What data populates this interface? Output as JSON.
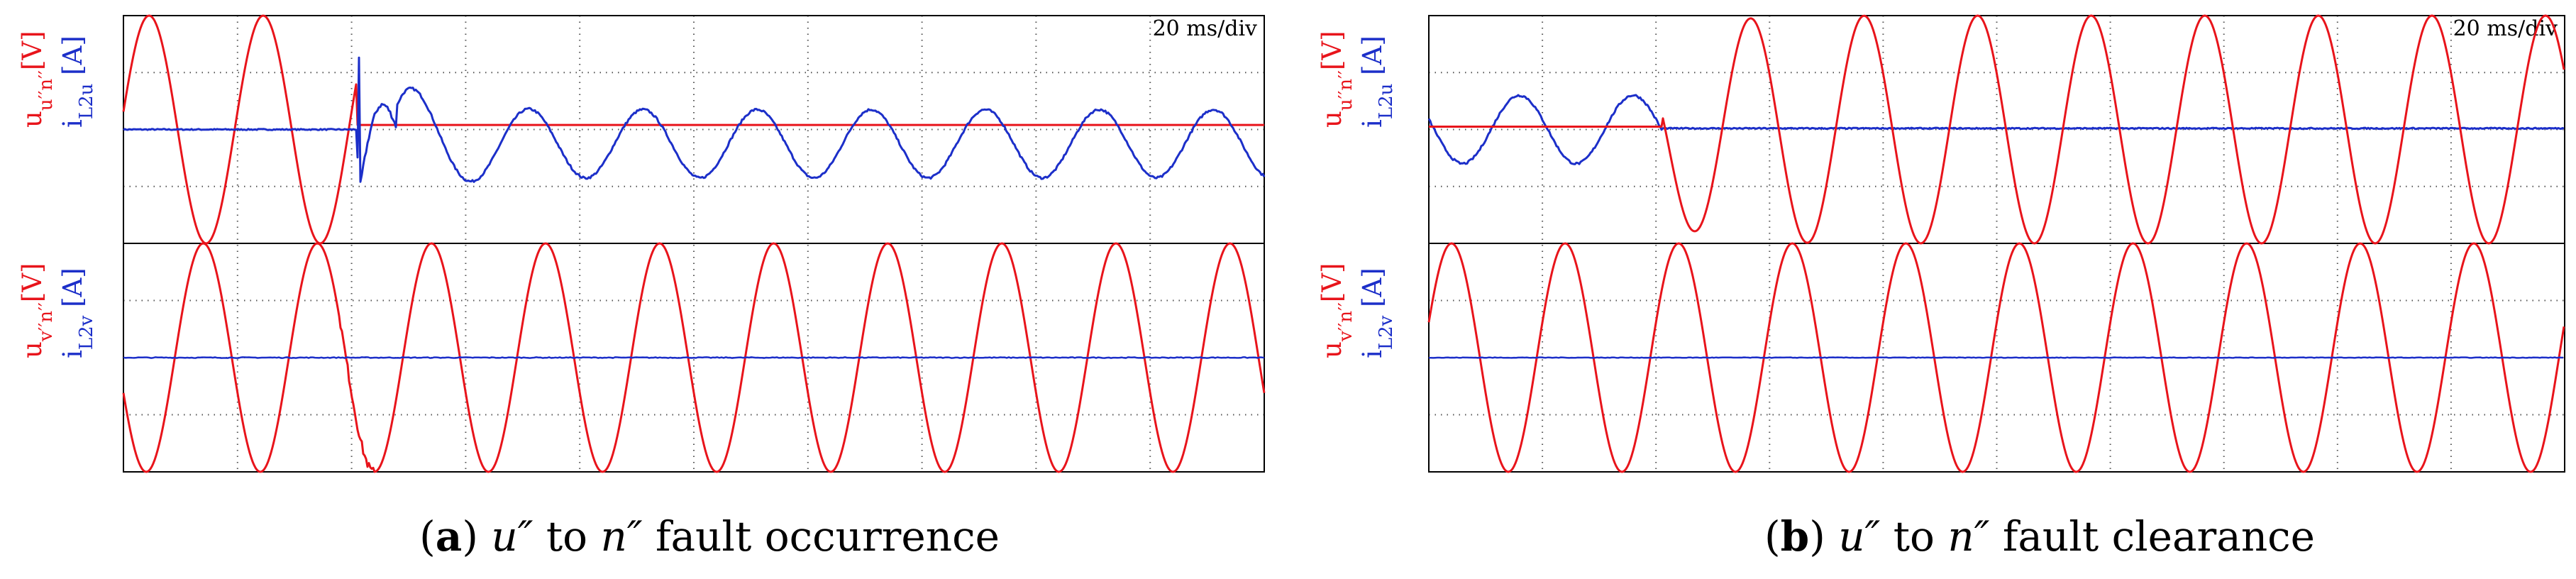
{
  "chart_data": [
    {
      "type": "line",
      "panel": "a",
      "time_scale": "20 ms/div",
      "x_divisions": 10,
      "caption": {
        "label": "a",
        "text": "u″ to n″ fault occurrence",
        "var1": "u″",
        "mid": " to ",
        "var2": "n″",
        "tail": " fault occurrence"
      },
      "subplots": [
        {
          "ylabel_red": "u",
          "ylabel_red_sub": "u′′n′′",
          "ylabel_red_unit": "[V]",
          "ylabel_blue": "i",
          "ylabel_blue_sub": "L2u",
          "ylabel_blue_unit": "[A]",
          "series": [
            {
              "name": "u_u″n″",
              "color": "#e8141b",
              "waveform": "sine",
              "amplitude_div": 2.0,
              "period_div": 1.0,
              "collapses_at_div": 2.05,
              "after_fault_amplitude_div": 0.0
            },
            {
              "name": "iL2u",
              "color": "#1c2fc9",
              "waveform": "sine",
              "amplitude_div": 0.0,
              "period_div": 1.0,
              "starts_at_div": 2.05,
              "after_fault_amplitude_div": 0.6,
              "transient_peak_div": 1.2
            }
          ]
        },
        {
          "ylabel_red": "u",
          "ylabel_red_sub": "v′′n′′",
          "ylabel_red_unit": "[V]",
          "ylabel_blue": "i",
          "ylabel_blue_sub": "L2v",
          "ylabel_blue_unit": "[A]",
          "series": [
            {
              "name": "u_v″n″",
              "color": "#e8141b",
              "waveform": "sine",
              "amplitude_div": 2.0,
              "period_div": 1.0
            },
            {
              "name": "iL2v",
              "color": "#1c2fc9",
              "waveform": "flat",
              "amplitude_div": 0.0
            }
          ]
        }
      ]
    },
    {
      "type": "line",
      "panel": "b",
      "time_scale": "20 ms/div",
      "x_divisions": 10,
      "caption": {
        "label": "b",
        "text": "u″ to n″ fault clearance",
        "var1": "u″",
        "mid": " to ",
        "var2": "n″",
        "tail": " fault clearance"
      },
      "subplots": [
        {
          "ylabel_red": "u",
          "ylabel_red_sub": "u′′n′′",
          "ylabel_red_unit": "[V]",
          "ylabel_blue": "i",
          "ylabel_blue_sub": "L2u",
          "ylabel_blue_unit": "[A]",
          "series": [
            {
              "name": "u_u″n″",
              "color": "#e8141b",
              "waveform": "sine",
              "amplitude_div": 0.0,
              "period_div": 1.0,
              "starts_at_div": 2.05,
              "after_clear_amplitude_div": 2.0
            },
            {
              "name": "iL2u",
              "color": "#1c2fc9",
              "waveform": "sine",
              "amplitude_div": 0.6,
              "period_div": 1.0,
              "stops_at_div": 2.05
            }
          ]
        },
        {
          "ylabel_red": "u",
          "ylabel_red_sub": "v′′n′′",
          "ylabel_red_unit": "[V]",
          "ylabel_blue": "i",
          "ylabel_blue_sub": "L2v",
          "ylabel_blue_unit": "[A]",
          "series": [
            {
              "name": "u_v″n″",
              "color": "#e8141b",
              "waveform": "sine",
              "amplitude_div": 2.0,
              "period_div": 1.0
            },
            {
              "name": "iL2v",
              "color": "#1c2fc9",
              "waveform": "flat",
              "amplitude_div": 0.0
            }
          ]
        }
      ]
    }
  ],
  "colors": {
    "voltage": "#e8141b",
    "current": "#1c2fc9",
    "frame": "#000000",
    "grid": "#555555"
  }
}
